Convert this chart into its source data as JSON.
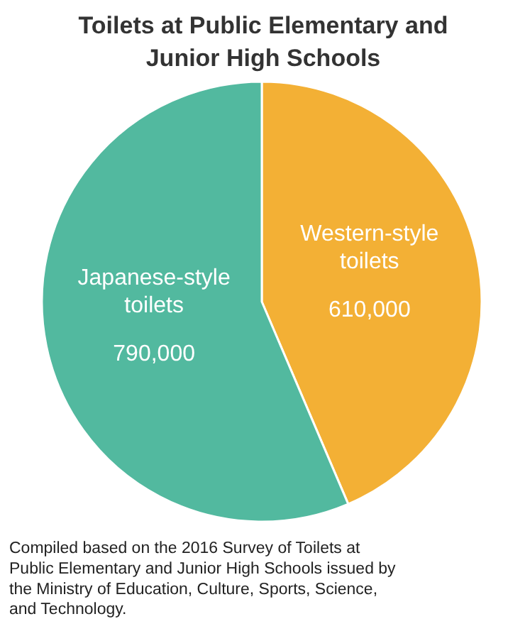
{
  "chart_data": {
    "type": "pie",
    "title": "Toilets at Public Elementary and Junior High Schools",
    "categories": [
      "Western-style toilets",
      "Japanese-style toilets"
    ],
    "values": [
      610000,
      790000
    ],
    "colors": [
      "#f3b035",
      "#52b99f"
    ],
    "value_labels": [
      "610,000",
      "790,000"
    ],
    "annotations": [
      "Compiled based on the 2016 Survey of Toilets at Public Elementary and Junior High Schools issued by the Ministry of Education, Culture, Sports, Science, and Technology."
    ]
  }
}
